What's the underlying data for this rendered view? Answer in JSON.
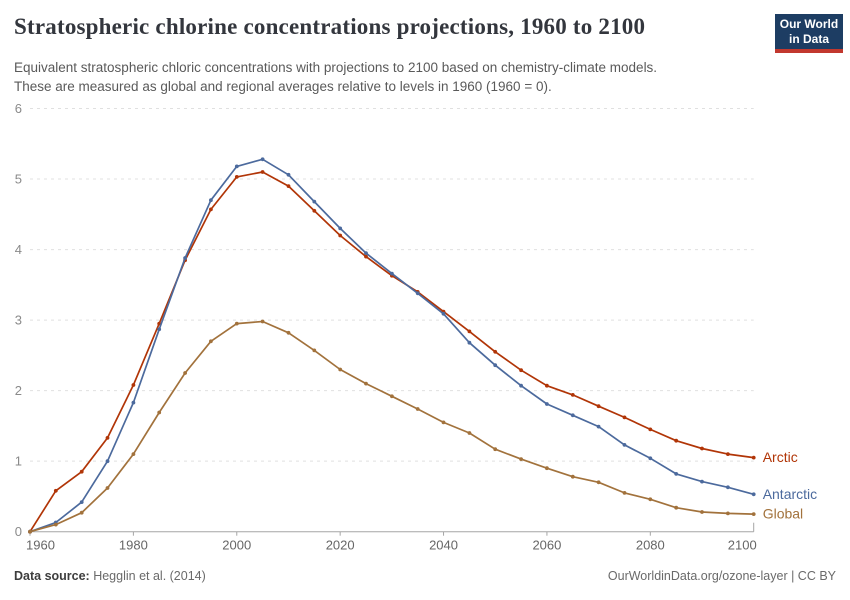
{
  "header": {
    "title": "Stratospheric chlorine concentrations projections, 1960 to 2100",
    "subtitle_line1": "Equivalent stratospheric chloric concentrations with projections to 2100 based on chemistry-climate models.",
    "subtitle_line2": "These are measured as global and regional averages relative to levels in 1960 (1960 = 0).",
    "logo": {
      "line1": "Our World",
      "line2": "in Data",
      "bg_color": "#1d3d63",
      "bar_color": "#c2382e"
    }
  },
  "chart_data": {
    "type": "line",
    "title": "Stratospheric chlorine concentrations projections, 1960 to 2100",
    "xlabel": "",
    "ylabel": "",
    "ylim": [
      0,
      6
    ],
    "yticks": [
      0,
      1,
      2,
      3,
      4,
      5,
      6
    ],
    "xticks": [
      1960,
      1980,
      2000,
      2020,
      2040,
      2060,
      2080,
      2100
    ],
    "grid": "horizontal-dashed",
    "legend_position": "end-of-line",
    "x": [
      1960,
      1965,
      1970,
      1975,
      1980,
      1985,
      1990,
      1995,
      2000,
      2005,
      2010,
      2015,
      2020,
      2025,
      2030,
      2035,
      2040,
      2045,
      2050,
      2055,
      2060,
      2065,
      2070,
      2075,
      2080,
      2085,
      2090,
      2095,
      2100
    ],
    "series": [
      {
        "name": "Arctic",
        "color": "#b13507",
        "values": [
          0,
          0.58,
          0.85,
          1.33,
          2.08,
          2.95,
          3.85,
          4.57,
          5.03,
          5.1,
          4.9,
          4.55,
          4.2,
          3.9,
          3.63,
          3.4,
          3.12,
          2.84,
          2.55,
          2.29,
          2.07,
          1.94,
          1.78,
          1.62,
          1.45,
          1.29,
          1.18,
          1.1,
          1.05
        ]
      },
      {
        "name": "Antarctic",
        "color": "#4c6a9d",
        "values": [
          0,
          0.13,
          0.42,
          1.0,
          1.83,
          2.87,
          3.88,
          4.7,
          5.18,
          5.28,
          5.06,
          4.68,
          4.3,
          3.95,
          3.66,
          3.38,
          3.09,
          2.68,
          2.36,
          2.07,
          1.81,
          1.65,
          1.49,
          1.23,
          1.04,
          0.82,
          0.71,
          0.63,
          0.53
        ]
      },
      {
        "name": "Global",
        "color": "#a2723c",
        "values": [
          0,
          0.1,
          0.27,
          0.62,
          1.1,
          1.69,
          2.25,
          2.7,
          2.95,
          2.98,
          2.82,
          2.57,
          2.3,
          2.1,
          1.92,
          1.74,
          1.55,
          1.4,
          1.17,
          1.03,
          0.9,
          0.78,
          0.7,
          0.55,
          0.46,
          0.34,
          0.28,
          0.26,
          0.25
        ]
      }
    ]
  },
  "footer": {
    "source_label": "Data source:",
    "source_value": " Hegglin et al. (2014)",
    "credit": "OurWorldinData.org/ozone-layer | CC BY"
  }
}
